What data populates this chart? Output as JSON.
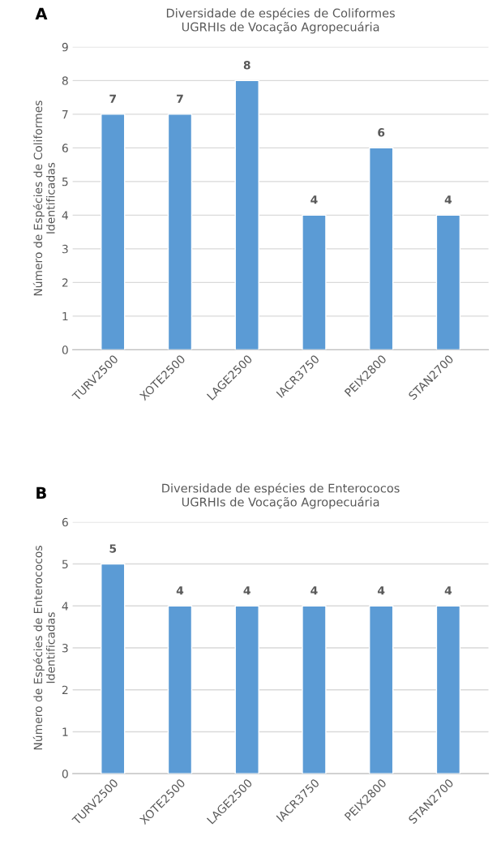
{
  "chart_data": [
    {
      "type": "bar",
      "title": "Diversidade de espécies de Coliformes\nUGRHIs de Vocação Agropecuária",
      "ylabel": "Número de Espécies de Coliformes\nIdentificadas",
      "annotations": [
        "A"
      ],
      "categories": [
        "TURV2500",
        "XOTE2500",
        "LAGE2500",
        "IACR3750",
        "PEIX2800",
        "STAN2700"
      ],
      "values": [
        7,
        7,
        8,
        4,
        6,
        4
      ],
      "color": "#5b9bd5",
      "ylim": [
        0,
        9
      ],
      "yticks": [
        0,
        1,
        2,
        3,
        4,
        5,
        6,
        7,
        8,
        9
      ],
      "grid": "y",
      "data_labels": true
    },
    {
      "type": "bar",
      "title": "Diversidade de espécies de Enterococos\nUGRHIs de Vocação Agropecuária",
      "ylabel": "Número de Espécies de Enterococos\nIdentificadas",
      "annotations": [
        "B"
      ],
      "categories": [
        "TURV2500",
        "XOTE2500",
        "LAGE2500",
        "IACR3750",
        "PEIX2800",
        "STAN2700"
      ],
      "values": [
        5,
        4,
        4,
        4,
        4,
        4
      ],
      "color": "#5b9bd5",
      "ylim": [
        0,
        6
      ],
      "yticks": [
        0,
        1,
        2,
        3,
        4,
        5,
        6
      ],
      "grid": "y",
      "data_labels": true
    }
  ]
}
